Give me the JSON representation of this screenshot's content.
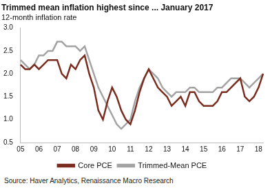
{
  "chart_data": {
    "type": "line",
    "title": "Trimmed mean inflation highest since ... January 2017",
    "subtitle": "12-month inflation rate",
    "source": "Source: Haver Analytics, Renaissance Macro Research",
    "categories": [
      "05",
      null,
      null,
      null,
      "06",
      null,
      null,
      null,
      "07",
      null,
      null,
      null,
      "08",
      null,
      null,
      null,
      "09",
      null,
      null,
      null,
      "10",
      null,
      null,
      null,
      "11",
      null,
      null,
      null,
      "12",
      null,
      null,
      null,
      "13",
      null,
      null,
      null,
      "14",
      null,
      null,
      null,
      "15",
      null,
      null,
      null,
      "16",
      null,
      null,
      null,
      "17",
      null,
      null,
      null,
      "18",
      null
    ],
    "series": [
      {
        "name": "Core PCE",
        "color": "#7a2c1e",
        "values": [
          2.2,
          2.1,
          2.1,
          2.2,
          2.1,
          2.2,
          2.3,
          2.3,
          2.3,
          2.0,
          1.9,
          2.2,
          2.1,
          2.3,
          2.4,
          2.0,
          1.7,
          1.2,
          1.0,
          1.4,
          1.7,
          1.5,
          1.2,
          1.0,
          0.9,
          1.2,
          1.6,
          1.9,
          2.1,
          1.9,
          1.7,
          1.6,
          1.5,
          1.3,
          1.4,
          1.5,
          1.3,
          1.6,
          1.6,
          1.4,
          1.3,
          1.3,
          1.3,
          1.4,
          1.6,
          1.6,
          1.7,
          1.8,
          1.9,
          1.5,
          1.4,
          1.5,
          1.7,
          2.0
        ]
      },
      {
        "name": "Trimmed-Mean PCE",
        "color": "#a3a3a3",
        "values": [
          2.3,
          2.2,
          2.1,
          2.2,
          2.4,
          2.4,
          2.5,
          2.5,
          2.7,
          2.7,
          2.6,
          2.6,
          2.6,
          2.5,
          2.6,
          2.3,
          2.0,
          1.7,
          1.5,
          1.3,
          1.1,
          0.9,
          0.8,
          0.9,
          1.0,
          1.4,
          1.7,
          1.9,
          2.1,
          2.0,
          1.9,
          1.7,
          1.6,
          1.5,
          1.6,
          1.6,
          1.6,
          1.7,
          1.7,
          1.6,
          1.6,
          1.6,
          1.6,
          1.7,
          1.7,
          1.8,
          1.9,
          1.9,
          1.9,
          1.8,
          1.7,
          1.8,
          1.9,
          2.0
        ]
      }
    ],
    "ylim": [
      0.5,
      3.0
    ],
    "yticks": [
      0.5,
      {
        "value": 1,
        "label": "1.0"
      },
      1.5,
      {
        "value": 2,
        "label": "2.0"
      },
      2.5,
      {
        "value": 3,
        "label": "3.0"
      }
    ],
    "grid": false,
    "legend": "bottom"
  }
}
